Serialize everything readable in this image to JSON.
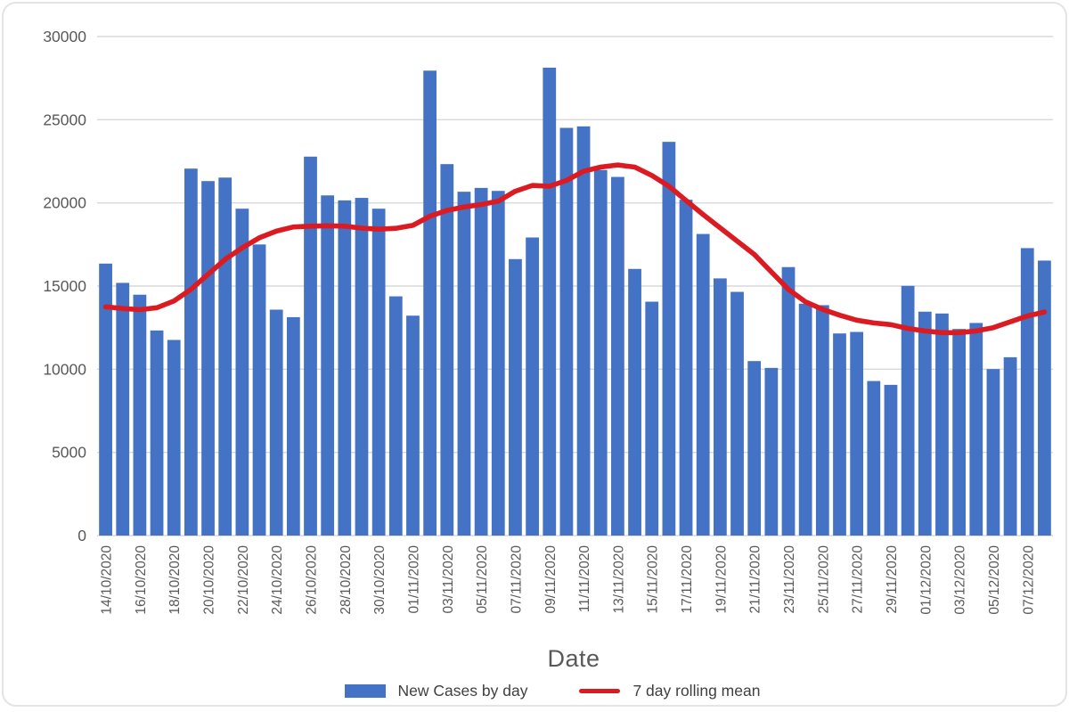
{
  "figure": {
    "background": "#ffffff",
    "border_color": "#e4e4e6"
  },
  "chart_data": {
    "type": "bar",
    "title": "",
    "xlabel": "Date",
    "ylabel": "",
    "ylim": [
      0,
      30000
    ],
    "yticks": [
      0,
      5000,
      10000,
      15000,
      20000,
      25000,
      30000
    ],
    "grid": true,
    "x_tick_label_every": 2,
    "x_tick_rotation": -90,
    "legend_position": "bottom",
    "colors": {
      "gridline": "#d9d9d9",
      "axis_text": "#595959",
      "bar": "#4472C4",
      "line": "#DC1A21"
    },
    "categories": [
      "14/10/2020",
      "15/10/2020",
      "16/10/2020",
      "17/10/2020",
      "18/10/2020",
      "19/10/2020",
      "20/10/2020",
      "21/10/2020",
      "22/10/2020",
      "23/10/2020",
      "24/10/2020",
      "25/10/2020",
      "26/10/2020",
      "27/10/2020",
      "28/10/2020",
      "29/10/2020",
      "30/10/2020",
      "31/10/2020",
      "01/11/2020",
      "02/11/2020",
      "03/11/2020",
      "04/11/2020",
      "05/11/2020",
      "06/11/2020",
      "07/11/2020",
      "08/11/2020",
      "09/11/2020",
      "10/11/2020",
      "11/11/2020",
      "12/11/2020",
      "13/11/2020",
      "14/11/2020",
      "15/11/2020",
      "16/11/2020",
      "17/11/2020",
      "18/11/2020",
      "19/11/2020",
      "20/11/2020",
      "21/11/2020",
      "22/11/2020",
      "23/11/2020",
      "24/11/2020",
      "25/11/2020",
      "26/11/2020",
      "27/11/2020",
      "28/11/2020",
      "29/11/2020",
      "30/11/2020",
      "01/12/2020",
      "02/12/2020",
      "03/12/2020",
      "04/12/2020",
      "05/12/2020",
      "06/12/2020",
      "07/12/2020",
      "08/12/2020"
    ],
    "series": [
      {
        "name": "New Cases by day",
        "kind": "bar",
        "color": "#4472C4",
        "values": [
          16350,
          15190,
          14480,
          12330,
          11760,
          22060,
          21310,
          21520,
          19650,
          17500,
          13580,
          13130,
          22780,
          20450,
          20150,
          20300,
          19650,
          14380,
          13220,
          27950,
          22330,
          20670,
          20900,
          20720,
          16620,
          17920,
          28130,
          24510,
          24600,
          21980,
          21560,
          16030,
          14060,
          23670,
          20190,
          18130,
          15460,
          14650,
          10490,
          10080,
          16140,
          13940,
          13850,
          12150,
          12240,
          9290,
          9060,
          15010,
          13460,
          13350,
          12420,
          12780,
          10010,
          10720,
          17280,
          16530
        ]
      },
      {
        "name": "7 day rolling mean",
        "kind": "line",
        "color": "#DC1A21",
        "values": [
          13750,
          13650,
          13580,
          13700,
          14100,
          14800,
          15700,
          16600,
          17300,
          17900,
          18300,
          18550,
          18600,
          18620,
          18600,
          18480,
          18420,
          18470,
          18650,
          19200,
          19550,
          19750,
          19900,
          20100,
          20700,
          21050,
          21000,
          21350,
          21900,
          22150,
          22280,
          22150,
          21650,
          21000,
          20150,
          19300,
          18500,
          17700,
          16900,
          15850,
          14800,
          14050,
          13600,
          13250,
          12950,
          12780,
          12680,
          12450,
          12300,
          12200,
          12200,
          12300,
          12500,
          12850,
          13200,
          13440
        ]
      }
    ]
  },
  "legend": {
    "items": [
      {
        "label": "New Cases by day",
        "swatch": "rect",
        "color": "#4472C4"
      },
      {
        "label": "7 day rolling mean",
        "swatch": "line",
        "color": "#DC1A21"
      }
    ]
  }
}
